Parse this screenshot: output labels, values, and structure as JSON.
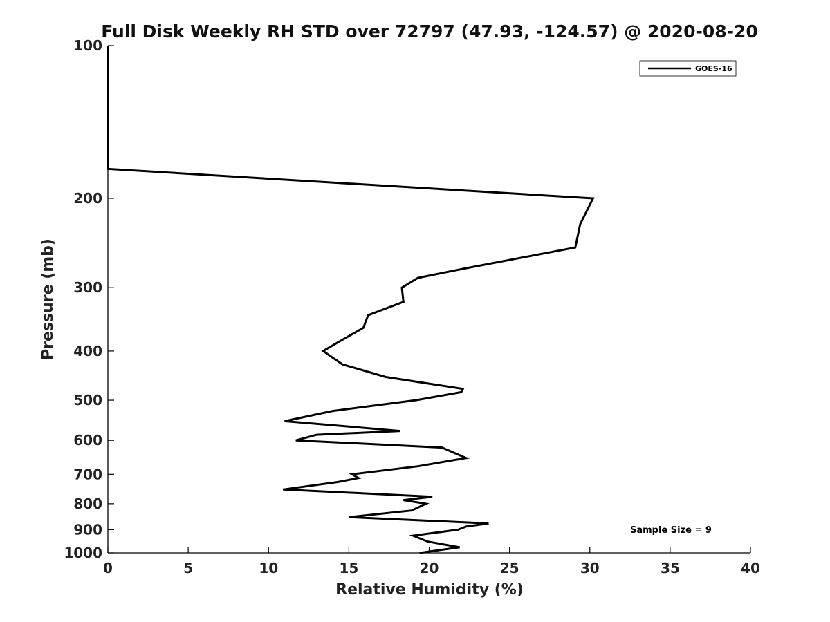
{
  "chart_data": {
    "type": "line",
    "title": "Full Disk Weekly RH STD over 72797 (47.93, -124.57) @ 2020-08-20",
    "xlabel": "Relative Humidity (%)",
    "ylabel": "Pressure (mb)",
    "xlim": [
      0,
      40
    ],
    "ylim": [
      100,
      1000
    ],
    "y_scale": "log",
    "y_reversed": true,
    "grid": false,
    "legend_position": "top-right",
    "x_ticks": [
      0,
      5,
      10,
      15,
      20,
      25,
      30,
      35,
      40
    ],
    "y_ticks": [
      100,
      200,
      300,
      400,
      500,
      600,
      700,
      800,
      900,
      1000
    ],
    "series": [
      {
        "name": "GOES-16",
        "color": "#000000",
        "points": [
          {
            "x": 0.0,
            "y": 100
          },
          {
            "x": 0.0,
            "y": 125
          },
          {
            "x": 0.0,
            "y": 150
          },
          {
            "x": 0.0,
            "y": 175
          },
          {
            "x": 30.2,
            "y": 200
          },
          {
            "x": 29.4,
            "y": 225
          },
          {
            "x": 29.1,
            "y": 250
          },
          {
            "x": 22.2,
            "y": 275
          },
          {
            "x": 19.3,
            "y": 287
          },
          {
            "x": 18.3,
            "y": 300
          },
          {
            "x": 18.4,
            "y": 320
          },
          {
            "x": 16.2,
            "y": 340
          },
          {
            "x": 15.9,
            "y": 360
          },
          {
            "x": 14.6,
            "y": 380
          },
          {
            "x": 13.4,
            "y": 400
          },
          {
            "x": 14.6,
            "y": 425
          },
          {
            "x": 17.3,
            "y": 450
          },
          {
            "x": 22.1,
            "y": 475
          },
          {
            "x": 22.0,
            "y": 482
          },
          {
            "x": 19.2,
            "y": 500
          },
          {
            "x": 14.0,
            "y": 525
          },
          {
            "x": 11.0,
            "y": 550
          },
          {
            "x": 18.2,
            "y": 575
          },
          {
            "x": 13.0,
            "y": 585
          },
          {
            "x": 11.7,
            "y": 600
          },
          {
            "x": 20.8,
            "y": 620
          },
          {
            "x": 22.3,
            "y": 650
          },
          {
            "x": 19.3,
            "y": 675
          },
          {
            "x": 15.2,
            "y": 700
          },
          {
            "x": 15.6,
            "y": 712
          },
          {
            "x": 14.3,
            "y": 725
          },
          {
            "x": 10.9,
            "y": 750
          },
          {
            "x": 20.2,
            "y": 775
          },
          {
            "x": 18.4,
            "y": 787
          },
          {
            "x": 19.8,
            "y": 800
          },
          {
            "x": 18.9,
            "y": 825
          },
          {
            "x": 15.0,
            "y": 850
          },
          {
            "x": 23.7,
            "y": 875
          },
          {
            "x": 22.3,
            "y": 887
          },
          {
            "x": 21.8,
            "y": 900
          },
          {
            "x": 19.0,
            "y": 925
          },
          {
            "x": 19.9,
            "y": 950
          },
          {
            "x": 21.9,
            "y": 975
          },
          {
            "x": 19.4,
            "y": 1000
          }
        ]
      }
    ],
    "annotations": [
      "Sample Size = 9"
    ]
  }
}
